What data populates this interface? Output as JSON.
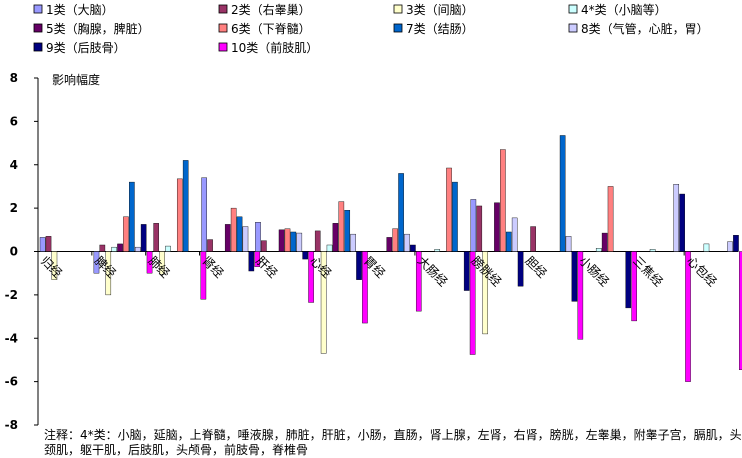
{
  "chart_data": {
    "type": "bar",
    "ylabel": "影响幅度",
    "ylim": [
      -8,
      8
    ],
    "yticks": [
      8,
      6,
      4,
      2,
      0,
      -2,
      -4,
      -6,
      -8
    ],
    "grid": false,
    "legend_position": "top",
    "categories": [
      "归经",
      "脾经",
      "肺经",
      "肾经",
      "肝经",
      "心经",
      "胃经",
      "大肠经",
      "膀胱经",
      "胆经",
      "小肠经",
      "三焦经",
      "心包经"
    ],
    "series": [
      {
        "name": "1类（大脑）",
        "color": "#9999ff",
        "values": [
          0.65,
          -1.0,
          0.0,
          3.4,
          1.35,
          0.0,
          0.0,
          0.0,
          2.4,
          0.0,
          0.0,
          0.0,
          0.0
        ]
      },
      {
        "name": "2类（右睾巢）",
        "color": "#993366",
        "values": [
          0.7,
          0.3,
          1.3,
          0.55,
          0.5,
          0.95,
          0.0,
          0.0,
          2.1,
          1.15,
          0.0,
          0.0,
          0.0
        ]
      },
      {
        "name": "3类（间脑）",
        "color": "#ffffcc",
        "values": [
          -1.3,
          -2.0,
          -1.05,
          0.0,
          0.0,
          -4.7,
          0.0,
          0.0,
          -3.8,
          0.0,
          0.0,
          0.0,
          0.0
        ]
      },
      {
        "name": "4*类（小脑等）",
        "color": "#ccffff",
        "values": [
          0.0,
          0.2,
          0.25,
          0.0,
          0.0,
          0.3,
          0.0,
          0.1,
          0.0,
          0.0,
          0.15,
          0.1,
          0.35
        ]
      },
      {
        "name": "5类（胸腺，脾脏）",
        "color": "#660066",
        "values": [
          0.0,
          0.35,
          0.0,
          1.25,
          1.0,
          1.3,
          0.65,
          0.0,
          2.25,
          0.0,
          0.85,
          0.0,
          0.0
        ]
      },
      {
        "name": "6类（下脊髓）",
        "color": "#ff8080",
        "values": [
          0.0,
          1.6,
          3.35,
          2.0,
          1.05,
          2.3,
          1.05,
          3.85,
          4.7,
          0.0,
          3.0,
          0.0,
          0.0
        ]
      },
      {
        "name": "7类（结肠）",
        "color": "#0066cc",
        "values": [
          0.0,
          3.2,
          4.2,
          1.6,
          0.9,
          1.9,
          3.6,
          3.2,
          0.9,
          5.35,
          0.0,
          0.0,
          0.0
        ]
      },
      {
        "name": "8类（气管，心脏，胃）",
        "color": "#ccccff",
        "values": [
          0.0,
          0.2,
          0.0,
          1.15,
          0.85,
          0.8,
          0.8,
          0.0,
          1.55,
          0.7,
          0.0,
          3.1,
          0.45
        ]
      },
      {
        "name": "9类（后肢骨）",
        "color": "#000080",
        "values": [
          0.0,
          1.25,
          0.0,
          -0.9,
          -0.35,
          -1.3,
          0.3,
          -1.8,
          -1.6,
          -2.3,
          -2.6,
          2.65,
          0.75
        ]
      },
      {
        "name": "10类（前肢肌）",
        "color": "#ff00ff",
        "values": [
          0.0,
          -1.0,
          -2.2,
          -0.7,
          -2.35,
          -3.3,
          -2.75,
          -4.75,
          0.0,
          -4.05,
          -3.2,
          -6.0,
          -5.45
        ]
      }
    ]
  },
  "note": "注释：4*类：小脑，延脑，上脊髓，唾液腺，肺脏，肝脏，小肠，直肠，肾上腺，左肾，右肾，膀胱，左睾巢，附睾子宫，膈肌，头颈肌，躯干肌，后肢肌，头颅骨，前肢骨，脊椎骨"
}
